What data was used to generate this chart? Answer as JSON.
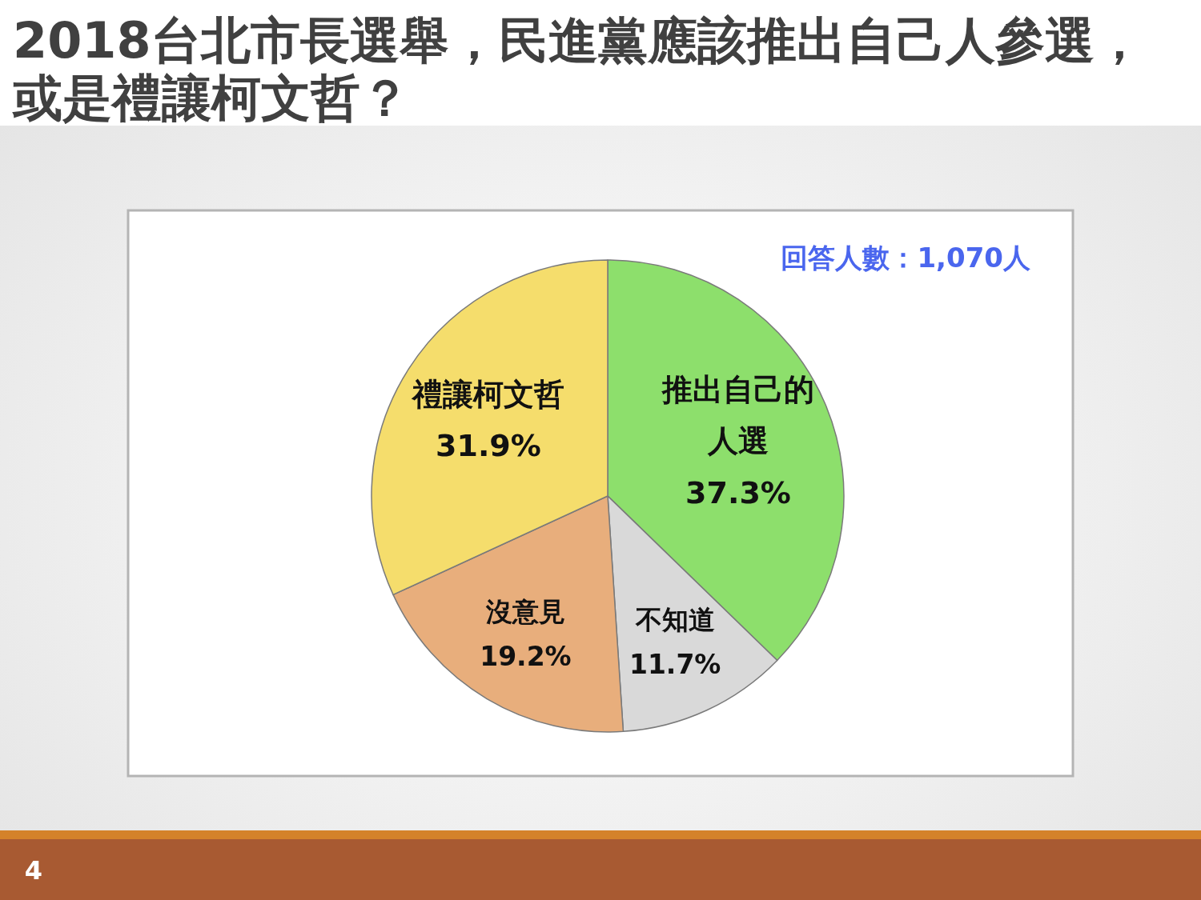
{
  "chart_data": {
    "type": "pie",
    "title": "2018台北市長選舉，民進黨應該推出自己人參選，或是禮讓柯文哲？",
    "categories": [
      "推出自己的人選",
      "不知道",
      "沒意見",
      "禮讓柯文哲"
    ],
    "values": [
      37.3,
      11.7,
      19.2,
      31.9
    ],
    "colors": [
      "#8ddf6c",
      "#d9d9d9",
      "#e8ae7c",
      "#f5dd6c"
    ],
    "value_labels": [
      "37.3%",
      "11.7%",
      "19.2%",
      "31.9%"
    ],
    "annotations": [
      "回答人數：1,070人",
      "4"
    ]
  }
}
